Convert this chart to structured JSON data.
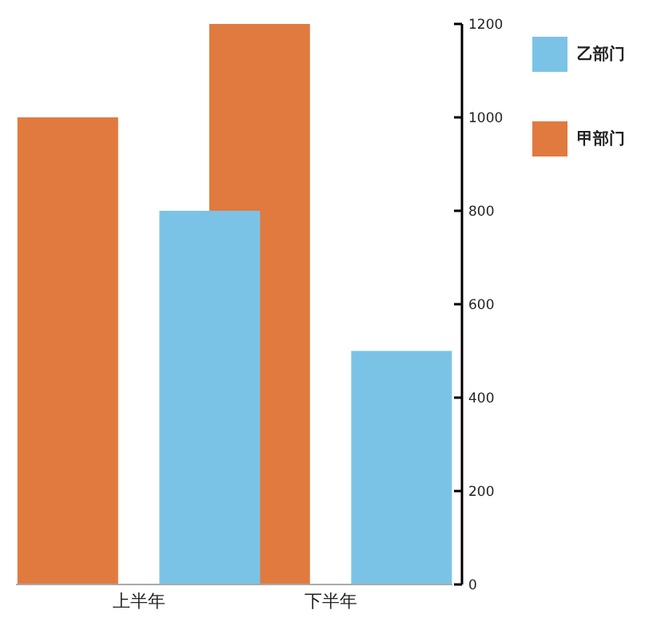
{
  "chart_data": {
    "type": "bar",
    "categories": [
      "上半年",
      "下半年"
    ],
    "series": [
      {
        "name": "甲部门",
        "color": "#e07a3f",
        "values": [
          1000,
          1200
        ]
      },
      {
        "name": "乙部门",
        "color": "#7bc3e6",
        "values": [
          800,
          500
        ]
      }
    ],
    "ylim": [
      0,
      1200
    ],
    "yticks": [
      0,
      200,
      400,
      600,
      800,
      1000,
      1200
    ],
    "grid": false,
    "legend": "top right"
  }
}
